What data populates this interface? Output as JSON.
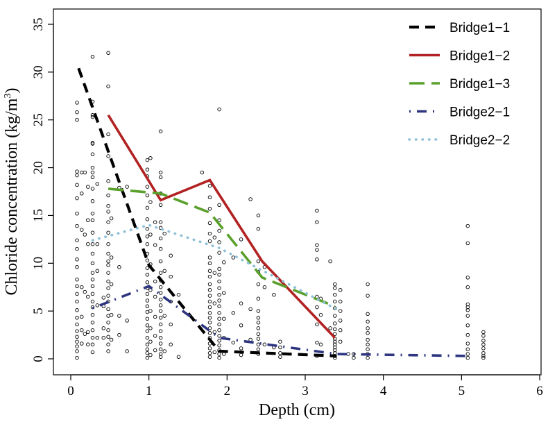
{
  "chart_data": {
    "type": "line",
    "title": "",
    "xlabel": "Depth (cm)",
    "ylabel_main": "Chloride concentration (kg/m",
    "ylabel_sup": "3",
    "ylabel_end": ")",
    "xlim": [
      0,
      6
    ],
    "ylim": [
      0,
      35
    ],
    "xticks": [
      0,
      1,
      2,
      3,
      4,
      5,
      6
    ],
    "yticks": [
      0,
      5,
      10,
      15,
      20,
      25,
      30,
      35
    ],
    "grid": false,
    "legend_position": "top-right",
    "series": [
      {
        "name": "Bridge1−1",
        "color": "#000000",
        "x": [
          0.1,
          1.0,
          1.9,
          3.4
        ],
        "y": [
          30.4,
          9.8,
          0.8,
          0.3
        ]
      },
      {
        "name": "Bridge1−2",
        "color": "#b22222",
        "x": [
          0.48,
          1.15,
          1.78,
          2.45,
          3.38
        ],
        "y": [
          25.5,
          16.6,
          18.7,
          10.2,
          2.2
        ]
      },
      {
        "name": "Bridge1−3",
        "color": "#5aa02c",
        "x": [
          0.48,
          1.15,
          1.78,
          2.45,
          3.38
        ],
        "y": [
          17.8,
          17.3,
          15.3,
          8.5,
          5.5
        ]
      },
      {
        "name": "Bridge2−1",
        "color": "#2d3580",
        "x": [
          0.28,
          1.0,
          1.9,
          3.4,
          5.1
        ],
        "y": [
          5.3,
          7.6,
          2.2,
          0.5,
          0.3
        ]
      },
      {
        "name": "Bridge2−2",
        "color": "#8ec0d8",
        "x": [
          0.28,
          1.0,
          1.9,
          3.4
        ],
        "y": [
          12.4,
          14.0,
          11.6,
          5.2
        ]
      }
    ],
    "scatter_points": [
      [
        0.08,
        0.1
      ],
      [
        0.08,
        0.8
      ],
      [
        0.08,
        1.3
      ],
      [
        0.08,
        1.8
      ],
      [
        0.08,
        2.3
      ],
      [
        0.08,
        2.9
      ],
      [
        0.08,
        3.6
      ],
      [
        0.08,
        4.3
      ],
      [
        0.08,
        5.1
      ],
      [
        0.08,
        6.0
      ],
      [
        0.08,
        6.8
      ],
      [
        0.08,
        7.6
      ],
      [
        0.08,
        8.3
      ],
      [
        0.08,
        9.6
      ],
      [
        0.08,
        10.4
      ],
      [
        0.08,
        11.5
      ],
      [
        0.08,
        12.4
      ],
      [
        0.08,
        13.9
      ],
      [
        0.08,
        15.2
      ],
      [
        0.08,
        16.8
      ],
      [
        0.08,
        18.2
      ],
      [
        0.08,
        19.2
      ],
      [
        0.08,
        19.6
      ],
      [
        0.08,
        25.0
      ],
      [
        0.08,
        25.8
      ],
      [
        0.08,
        26.8
      ],
      [
        0.14,
        1.6
      ],
      [
        0.14,
        3.0
      ],
      [
        0.14,
        4.4
      ],
      [
        0.14,
        7.5
      ],
      [
        0.14,
        13.5
      ],
      [
        0.14,
        17.3
      ],
      [
        0.14,
        19.5
      ],
      [
        0.18,
        2.6
      ],
      [
        0.18,
        7.0
      ],
      [
        0.18,
        13.0
      ],
      [
        0.18,
        19.5
      ],
      [
        0.22,
        1.5
      ],
      [
        0.22,
        2.8
      ],
      [
        0.22,
        6.5
      ],
      [
        0.22,
        12.0
      ],
      [
        0.22,
        14.5
      ],
      [
        0.22,
        18.0
      ],
      [
        0.28,
        0.7
      ],
      [
        0.28,
        1.5
      ],
      [
        0.28,
        2.2
      ],
      [
        0.28,
        3.0
      ],
      [
        0.28,
        3.8
      ],
      [
        0.28,
        4.6
      ],
      [
        0.28,
        5.4
      ],
      [
        0.28,
        6.0
      ],
      [
        0.28,
        6.8
      ],
      [
        0.28,
        7.6
      ],
      [
        0.28,
        8.3
      ],
      [
        0.28,
        9.0
      ],
      [
        0.28,
        10.0
      ],
      [
        0.28,
        11.0
      ],
      [
        0.28,
        12.0
      ],
      [
        0.28,
        13.2
      ],
      [
        0.28,
        14.5
      ],
      [
        0.28,
        15.2
      ],
      [
        0.28,
        16.5
      ],
      [
        0.28,
        17.8
      ],
      [
        0.28,
        19.0
      ],
      [
        0.28,
        19.5
      ],
      [
        0.28,
        20.0
      ],
      [
        0.28,
        21.4
      ],
      [
        0.28,
        22.5
      ],
      [
        0.28,
        22.6
      ],
      [
        0.28,
        25.3
      ],
      [
        0.28,
        25.5
      ],
      [
        0.28,
        26.9
      ],
      [
        0.28,
        31.6
      ],
      [
        0.34,
        2.2
      ],
      [
        0.34,
        5.6
      ],
      [
        0.34,
        9.2
      ],
      [
        0.34,
        12.0
      ],
      [
        0.34,
        18.3
      ],
      [
        0.42,
        2.2
      ],
      [
        0.42,
        3.2
      ],
      [
        0.42,
        5.5
      ],
      [
        0.42,
        6.4
      ],
      [
        0.48,
        0.8
      ],
      [
        0.48,
        1.5
      ],
      [
        0.48,
        2.3
      ],
      [
        0.48,
        3.0
      ],
      [
        0.48,
        3.8
      ],
      [
        0.48,
        4.5
      ],
      [
        0.48,
        5.2
      ],
      [
        0.48,
        6.0
      ],
      [
        0.48,
        6.6
      ],
      [
        0.48,
        7.4
      ],
      [
        0.48,
        8.1
      ],
      [
        0.48,
        9.0
      ],
      [
        0.48,
        9.8
      ],
      [
        0.48,
        10.2
      ],
      [
        0.48,
        11.0
      ],
      [
        0.48,
        12.0
      ],
      [
        0.48,
        13.2
      ],
      [
        0.48,
        14.3
      ],
      [
        0.48,
        15.4
      ],
      [
        0.48,
        16.0
      ],
      [
        0.48,
        17.1
      ],
      [
        0.48,
        18.6
      ],
      [
        0.48,
        21.2
      ],
      [
        0.48,
        23.5
      ],
      [
        0.48,
        28.5
      ],
      [
        0.48,
        32.0
      ],
      [
        0.52,
        2.0
      ],
      [
        0.52,
        4.6
      ],
      [
        0.52,
        7.8
      ],
      [
        0.52,
        10.6
      ],
      [
        0.52,
        14.7
      ],
      [
        0.62,
        2.5
      ],
      [
        0.62,
        4.5
      ],
      [
        0.62,
        9.6
      ],
      [
        0.62,
        17.9
      ],
      [
        0.72,
        0.8
      ],
      [
        0.72,
        4.0
      ],
      [
        0.72,
        18.0
      ],
      [
        0.98,
        0.1
      ],
      [
        0.98,
        0.6
      ],
      [
        0.98,
        1.0
      ],
      [
        0.98,
        1.5
      ],
      [
        0.98,
        2.2
      ],
      [
        0.98,
        2.9
      ],
      [
        0.98,
        3.5
      ],
      [
        0.98,
        4.2
      ],
      [
        0.98,
        4.9
      ],
      [
        0.98,
        5.5
      ],
      [
        0.98,
        6.1
      ],
      [
        0.98,
        6.8
      ],
      [
        0.98,
        7.4
      ],
      [
        0.98,
        8.0
      ],
      [
        0.98,
        8.8
      ],
      [
        0.98,
        9.5
      ],
      [
        0.98,
        10.3
      ],
      [
        0.98,
        11.0
      ],
      [
        0.98,
        12.0
      ],
      [
        0.98,
        12.8
      ],
      [
        0.98,
        13.6
      ],
      [
        0.98,
        14.6
      ],
      [
        0.98,
        15.8
      ],
      [
        0.98,
        17.1
      ],
      [
        0.98,
        18.0
      ],
      [
        0.98,
        19.1
      ],
      [
        0.98,
        19.8
      ],
      [
        0.98,
        20.8
      ],
      [
        1.02,
        0.4
      ],
      [
        1.02,
        1.8
      ],
      [
        1.02,
        3.2
      ],
      [
        1.02,
        5.0
      ],
      [
        1.02,
        7.2
      ],
      [
        1.02,
        9.9
      ],
      [
        1.02,
        13.0
      ],
      [
        1.02,
        16.4
      ],
      [
        1.02,
        21.0
      ],
      [
        1.08,
        0.9
      ],
      [
        1.08,
        2.4
      ],
      [
        1.08,
        4.4
      ],
      [
        1.08,
        6.5
      ],
      [
        1.08,
        8.1
      ],
      [
        1.08,
        11.9
      ],
      [
        1.08,
        14.3
      ],
      [
        1.15,
        0.2
      ],
      [
        1.15,
        0.5
      ],
      [
        1.15,
        1.0
      ],
      [
        1.15,
        1.6
      ],
      [
        1.15,
        2.2
      ],
      [
        1.15,
        2.9
      ],
      [
        1.15,
        3.6
      ],
      [
        1.15,
        4.3
      ],
      [
        1.15,
        5.0
      ],
      [
        1.15,
        5.6
      ],
      [
        1.15,
        6.2
      ],
      [
        1.15,
        6.9
      ],
      [
        1.15,
        7.5
      ],
      [
        1.15,
        8.2
      ],
      [
        1.15,
        9.0
      ],
      [
        1.15,
        10.2
      ],
      [
        1.15,
        11.5
      ],
      [
        1.15,
        12.6
      ],
      [
        1.15,
        13.7
      ],
      [
        1.15,
        14.3
      ],
      [
        1.15,
        16.1
      ],
      [
        1.15,
        17.3
      ],
      [
        1.15,
        19.0
      ],
      [
        1.15,
        19.5
      ],
      [
        1.15,
        23.8
      ],
      [
        1.2,
        0.8
      ],
      [
        1.2,
        4.5
      ],
      [
        1.2,
        9.2
      ],
      [
        1.2,
        13.1
      ],
      [
        1.28,
        1.5
      ],
      [
        1.28,
        3.6
      ],
      [
        1.28,
        6.0
      ],
      [
        1.28,
        8.6
      ],
      [
        1.28,
        10.8
      ],
      [
        1.38,
        0.2
      ],
      [
        1.38,
        6.7
      ],
      [
        1.68,
        19.5
      ],
      [
        1.78,
        0.2
      ],
      [
        1.78,
        0.6
      ],
      [
        1.78,
        1.1
      ],
      [
        1.78,
        1.6
      ],
      [
        1.78,
        2.2
      ],
      [
        1.78,
        2.7
      ],
      [
        1.78,
        3.2
      ],
      [
        1.78,
        3.8
      ],
      [
        1.78,
        4.3
      ],
      [
        1.78,
        4.8
      ],
      [
        1.78,
        5.4
      ],
      [
        1.78,
        6.0
      ],
      [
        1.78,
        6.6
      ],
      [
        1.78,
        7.2
      ],
      [
        1.78,
        7.8
      ],
      [
        1.78,
        8.6
      ],
      [
        1.78,
        9.2
      ],
      [
        1.78,
        10.0
      ],
      [
        1.78,
        10.6
      ],
      [
        1.78,
        12.3
      ],
      [
        1.78,
        13.1
      ],
      [
        1.78,
        14.2
      ],
      [
        1.78,
        15.7
      ],
      [
        1.78,
        16.9
      ],
      [
        1.78,
        18.1
      ],
      [
        1.84,
        0.7
      ],
      [
        1.84,
        2.8
      ],
      [
        1.84,
        5.8
      ],
      [
        1.84,
        9.0
      ],
      [
        1.84,
        12.7
      ],
      [
        1.9,
        0.1
      ],
      [
        1.9,
        0.5
      ],
      [
        1.9,
        0.9
      ],
      [
        1.9,
        1.4
      ],
      [
        1.9,
        1.9
      ],
      [
        1.9,
        2.4
      ],
      [
        1.9,
        3.0
      ],
      [
        1.9,
        3.6
      ],
      [
        1.9,
        4.2
      ],
      [
        1.9,
        4.8
      ],
      [
        1.9,
        5.5
      ],
      [
        1.9,
        6.1
      ],
      [
        1.9,
        6.7
      ],
      [
        1.9,
        7.4
      ],
      [
        1.9,
        8.1
      ],
      [
        1.9,
        8.8
      ],
      [
        1.9,
        9.4
      ],
      [
        1.9,
        11.1
      ],
      [
        1.9,
        12.2
      ],
      [
        1.9,
        13.4
      ],
      [
        1.9,
        14.5
      ],
      [
        1.9,
        16.1
      ],
      [
        1.9,
        26.1
      ],
      [
        1.96,
        0.5
      ],
      [
        1.96,
        2.2
      ],
      [
        1.96,
        4.2
      ],
      [
        1.96,
        6.9
      ],
      [
        1.96,
        10.1
      ],
      [
        2.08,
        1.7
      ],
      [
        2.08,
        4.8
      ],
      [
        2.08,
        10.6
      ],
      [
        2.18,
        0.4
      ],
      [
        2.18,
        1.1
      ],
      [
        2.18,
        3.5
      ],
      [
        2.18,
        5.8
      ],
      [
        2.18,
        12.5
      ],
      [
        2.3,
        2.0
      ],
      [
        2.3,
        5.2
      ],
      [
        2.3,
        16.7
      ],
      [
        2.4,
        0.5
      ],
      [
        2.4,
        1.0
      ],
      [
        2.4,
        1.5
      ],
      [
        2.4,
        2.1
      ],
      [
        2.4,
        2.6
      ],
      [
        2.4,
        3.2
      ],
      [
        2.4,
        3.8
      ],
      [
        2.4,
        4.3
      ],
      [
        2.4,
        5.0
      ],
      [
        2.4,
        6.3
      ],
      [
        2.4,
        7.8
      ],
      [
        2.4,
        9.1
      ],
      [
        2.4,
        10.2
      ],
      [
        2.4,
        13.6
      ],
      [
        2.4,
        15.0
      ],
      [
        2.48,
        1.5
      ],
      [
        2.48,
        7.5
      ],
      [
        2.48,
        9.6
      ],
      [
        2.6,
        1.2
      ],
      [
        2.6,
        6.7
      ],
      [
        2.68,
        0.2
      ],
      [
        2.68,
        0.6
      ],
      [
        2.68,
        1.2
      ],
      [
        2.68,
        1.8
      ],
      [
        3.15,
        0.3
      ],
      [
        3.15,
        1.7
      ],
      [
        3.15,
        3.6
      ],
      [
        3.15,
        5.4
      ],
      [
        3.15,
        6.5
      ],
      [
        3.15,
        10.4
      ],
      [
        3.15,
        11.4
      ],
      [
        3.15,
        11.9
      ],
      [
        3.15,
        14.3
      ],
      [
        3.15,
        15.5
      ],
      [
        3.2,
        1.5
      ],
      [
        3.2,
        4.6
      ],
      [
        3.2,
        6.3
      ],
      [
        3.32,
        3.2
      ],
      [
        3.32,
        10.2
      ],
      [
        3.38,
        0.1
      ],
      [
        3.38,
        0.3
      ],
      [
        3.38,
        0.6
      ],
      [
        3.38,
        0.9
      ],
      [
        3.38,
        1.2
      ],
      [
        3.38,
        1.5
      ],
      [
        3.38,
        1.8
      ],
      [
        3.38,
        2.1
      ],
      [
        3.38,
        2.6
      ],
      [
        3.38,
        3.1
      ],
      [
        3.38,
        3.7
      ],
      [
        3.38,
        4.5
      ],
      [
        3.38,
        5.3
      ],
      [
        3.38,
        6.0
      ],
      [
        3.38,
        6.7
      ],
      [
        3.38,
        7.4
      ],
      [
        3.38,
        7.8
      ],
      [
        3.45,
        1.8
      ],
      [
        3.45,
        3.0
      ],
      [
        3.45,
        4.0
      ],
      [
        3.45,
        5.0
      ],
      [
        3.45,
        6.0
      ],
      [
        3.45,
        7.2
      ],
      [
        3.55,
        0.5
      ],
      [
        3.62,
        0.1
      ],
      [
        3.62,
        0.5
      ],
      [
        3.8,
        0.1
      ],
      [
        3.8,
        0.5
      ],
      [
        3.8,
        1.0
      ],
      [
        3.8,
        1.5
      ],
      [
        3.8,
        2.0
      ],
      [
        3.8,
        2.7
      ],
      [
        3.8,
        3.2
      ],
      [
        3.8,
        3.9
      ],
      [
        3.8,
        4.7
      ],
      [
        3.8,
        6.6
      ],
      [
        3.8,
        7.8
      ],
      [
        5.08,
        0.1
      ],
      [
        5.08,
        0.5
      ],
      [
        5.08,
        1.0
      ],
      [
        5.08,
        1.6
      ],
      [
        5.08,
        2.5
      ],
      [
        5.08,
        3.5
      ],
      [
        5.08,
        4.5
      ],
      [
        5.08,
        5.1
      ],
      [
        5.08,
        5.4
      ],
      [
        5.08,
        5.7
      ],
      [
        5.08,
        7.5
      ],
      [
        5.08,
        8.5
      ],
      [
        5.08,
        12.1
      ],
      [
        5.08,
        13.9
      ],
      [
        5.28,
        0.1
      ],
      [
        5.28,
        0.3
      ],
      [
        5.28,
        0.6
      ],
      [
        5.28,
        1.1
      ],
      [
        5.28,
        1.5
      ],
      [
        5.28,
        1.9
      ],
      [
        5.28,
        2.4
      ],
      [
        5.28,
        2.8
      ]
    ]
  }
}
